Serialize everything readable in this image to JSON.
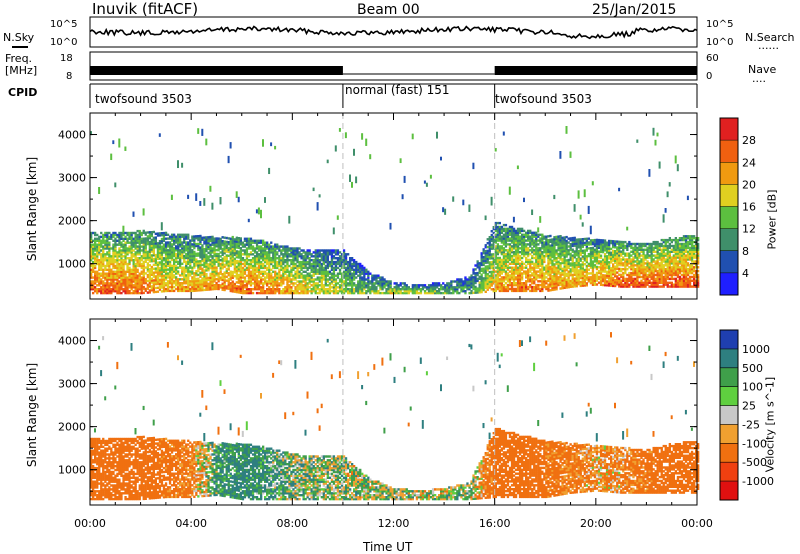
{
  "header": {
    "station": "Inuvik (fitACF)",
    "beam": "Beam 00",
    "date": "25/Jan/2015"
  },
  "left_labels": {
    "nsky": "N.Sky",
    "freq_line1": "Freq.",
    "freq_line2": "[MHz]",
    "cpid": "CPID"
  },
  "right_labels": {
    "nsearch": "N.Search",
    "nsearch_dots": "......",
    "nave": "Nave",
    "nave_dots": "...."
  },
  "noise_panel": {
    "left_ticks": [
      "10^5",
      "10^0"
    ],
    "right_ticks": [
      "10^5",
      "10^0"
    ]
  },
  "freq_panel": {
    "left_ticks": [
      "18",
      "8"
    ],
    "right_ticks": [
      "60",
      "0"
    ]
  },
  "cpid_segments": [
    {
      "label": "twofsound 3503",
      "start": 0,
      "end": 10
    },
    {
      "label": "normal (fast) 151",
      "start": 10,
      "end": 16
    },
    {
      "label": "twofsound 3503",
      "start": 16,
      "end": 24
    }
  ],
  "chart_data": [
    {
      "type": "heatmap",
      "name": "power",
      "ylabel": "Slant Range [km]",
      "ylim": [
        180,
        4500
      ],
      "yticks": [
        "1000",
        "2000",
        "3000",
        "4000"
      ],
      "colorbar": {
        "label": "Power [dB]",
        "ticks": [
          "4",
          "8",
          "12",
          "16",
          "20",
          "24",
          "28"
        ],
        "colors": [
          "#1f1fff",
          "#2050b0",
          "#3f8f6a",
          "#5cbf3f",
          "#e0d020",
          "#f09a10",
          "#f06010",
          "#e02020"
        ]
      },
      "x": [
        0,
        1,
        2,
        3,
        4,
        5,
        6,
        7,
        8,
        9,
        10,
        11,
        12,
        13,
        14,
        15,
        16,
        17,
        18,
        19,
        20,
        21,
        22,
        23,
        24
      ],
      "main_echo_range_km": [
        [
          300,
          1700
        ],
        [
          300,
          1700
        ],
        [
          300,
          1750
        ],
        [
          350,
          1700
        ],
        [
          350,
          1650
        ],
        [
          400,
          1600
        ],
        [
          300,
          1600
        ],
        [
          300,
          1500
        ],
        [
          300,
          1350
        ],
        [
          300,
          1300
        ],
        [
          300,
          1300
        ],
        [
          300,
          800
        ],
        [
          300,
          550
        ],
        [
          300,
          500
        ],
        [
          300,
          550
        ],
        [
          300,
          700
        ],
        [
          350,
          1950
        ],
        [
          350,
          1800
        ],
        [
          350,
          1650
        ],
        [
          450,
          1600
        ],
        [
          500,
          1550
        ],
        [
          450,
          1500
        ],
        [
          450,
          1450
        ],
        [
          450,
          1600
        ],
        [
          450,
          1650
        ]
      ],
      "peak_power_db": [
        28,
        27,
        26,
        22,
        22,
        24,
        26,
        25,
        22,
        18,
        16,
        14,
        18,
        16,
        14,
        12,
        22,
        26,
        25,
        22,
        24,
        28,
        28,
        28,
        28
      ]
    },
    {
      "type": "heatmap",
      "name": "velocity",
      "xlabel": "Time UT",
      "ylabel": "Slant Range [km]",
      "ylim": [
        180,
        4500
      ],
      "yticks": [
        "1000",
        "2000",
        "3000",
        "4000"
      ],
      "xticks": [
        "00:00",
        "04:00",
        "08:00",
        "12:00",
        "16:00",
        "20:00",
        "00:00"
      ],
      "colorbar": {
        "label": "Velocity [m s^-1]",
        "ticks": [
          "1000",
          "500",
          "100",
          "25",
          "-25",
          "-100",
          "-500",
          "-1000"
        ],
        "colors": [
          "#1f3fb0",
          "#2e7f80",
          "#3f9f4a",
          "#5fcf3f",
          "#c8c8c8",
          "#f0a030",
          "#f07010",
          "#f04010",
          "#e01010"
        ]
      },
      "x": [
        0,
        1,
        2,
        3,
        4,
        5,
        6,
        7,
        8,
        9,
        10,
        11,
        12,
        13,
        14,
        15,
        16,
        17,
        18,
        19,
        20,
        21,
        22,
        23,
        24
      ],
      "main_echo_range_km": [
        [
          300,
          1700
        ],
        [
          300,
          1700
        ],
        [
          300,
          1750
        ],
        [
          350,
          1700
        ],
        [
          350,
          1650
        ],
        [
          400,
          1600
        ],
        [
          300,
          1600
        ],
        [
          300,
          1500
        ],
        [
          300,
          1350
        ],
        [
          300,
          1300
        ],
        [
          300,
          1300
        ],
        [
          300,
          800
        ],
        [
          300,
          550
        ],
        [
          300,
          500
        ],
        [
          300,
          550
        ],
        [
          300,
          700
        ],
        [
          350,
          1950
        ],
        [
          350,
          1800
        ],
        [
          350,
          1650
        ],
        [
          450,
          1600
        ],
        [
          500,
          1550
        ],
        [
          450,
          1500
        ],
        [
          450,
          1450
        ],
        [
          450,
          1600
        ],
        [
          450,
          1650
        ]
      ],
      "typical_velocity_ms": [
        -300,
        -300,
        -250,
        -200,
        -150,
        100,
        150,
        100,
        50,
        30,
        20,
        0,
        20,
        10,
        0,
        20,
        -250,
        -300,
        -200,
        -150,
        -100,
        -120,
        -200,
        -250,
        -250
      ]
    }
  ],
  "colors": {
    "axis": "#000000",
    "mode_boundary": "#bfbfbf"
  }
}
